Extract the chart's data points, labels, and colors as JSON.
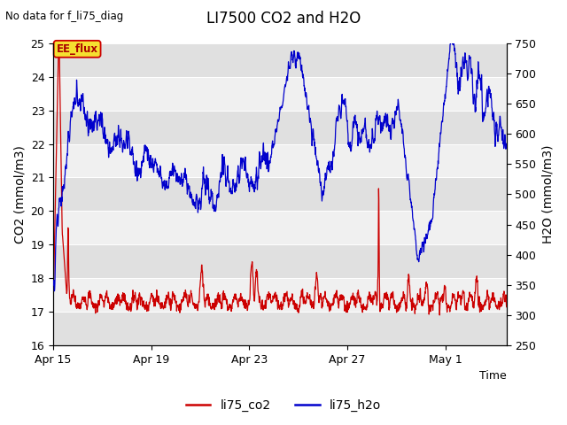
{
  "title": "LI7500 CO2 and H2O",
  "top_left_text": "No data for f_li75_diag",
  "xlabel": "Time",
  "ylabel_left": "CO2 (mmol/m3)",
  "ylabel_right": "H2O (mmol/m3)",
  "ylim_left": [
    16.0,
    25.0
  ],
  "ylim_right": [
    250,
    750
  ],
  "left_yticks": [
    16.0,
    17.0,
    18.0,
    19.0,
    20.0,
    21.0,
    22.0,
    23.0,
    24.0,
    25.0
  ],
  "right_yticks": [
    250,
    300,
    350,
    400,
    450,
    500,
    550,
    600,
    650,
    700,
    750
  ],
  "xtick_labels": [
    "Apr 15",
    "Apr 19",
    "Apr 23",
    "Apr 27",
    "May 1"
  ],
  "annotation_text": "EE_flux",
  "bg_color": "#ffffff",
  "plot_bg_color": "#ffffff",
  "band_color_dark": "#e0e0e0",
  "band_color_light": "#f0f0f0",
  "grid_color": "#ffffff",
  "co2_color": "#cc0000",
  "h2o_color": "#0000cc",
  "legend_co2": "li75_co2",
  "legend_h2o": "li75_h2o",
  "title_fontsize": 12,
  "label_fontsize": 10,
  "tick_fontsize": 9,
  "legend_fontsize": 10,
  "annot_facecolor": "#f5e642",
  "annot_edgecolor": "#cc0000"
}
